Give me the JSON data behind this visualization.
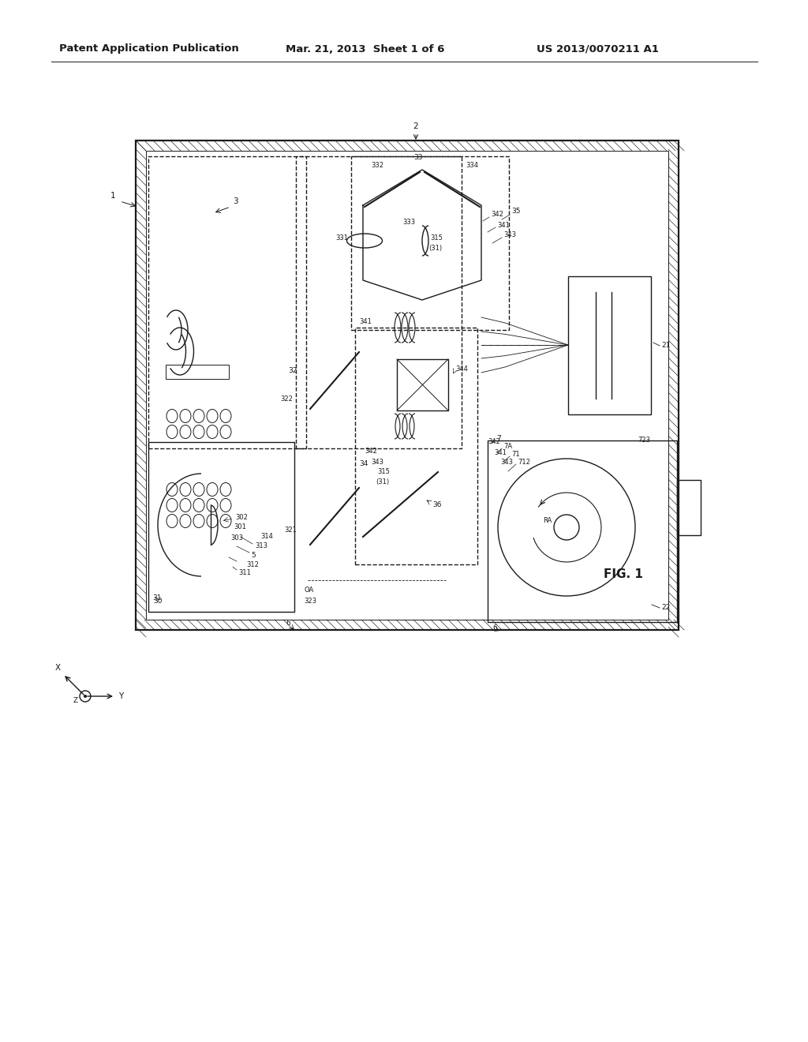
{
  "bg_color": "#ffffff",
  "lc": "#1a1a1a",
  "header_left": "Patent Application Publication",
  "header_mid": "Mar. 21, 2013  Sheet 1 of 6",
  "header_right": "US 2013/0070211 A1",
  "fig_label": "FIG. 1",
  "hdr_fontsize": 9.5,
  "lbl_fontsize": 7.5,
  "lbl_small": 6.5
}
